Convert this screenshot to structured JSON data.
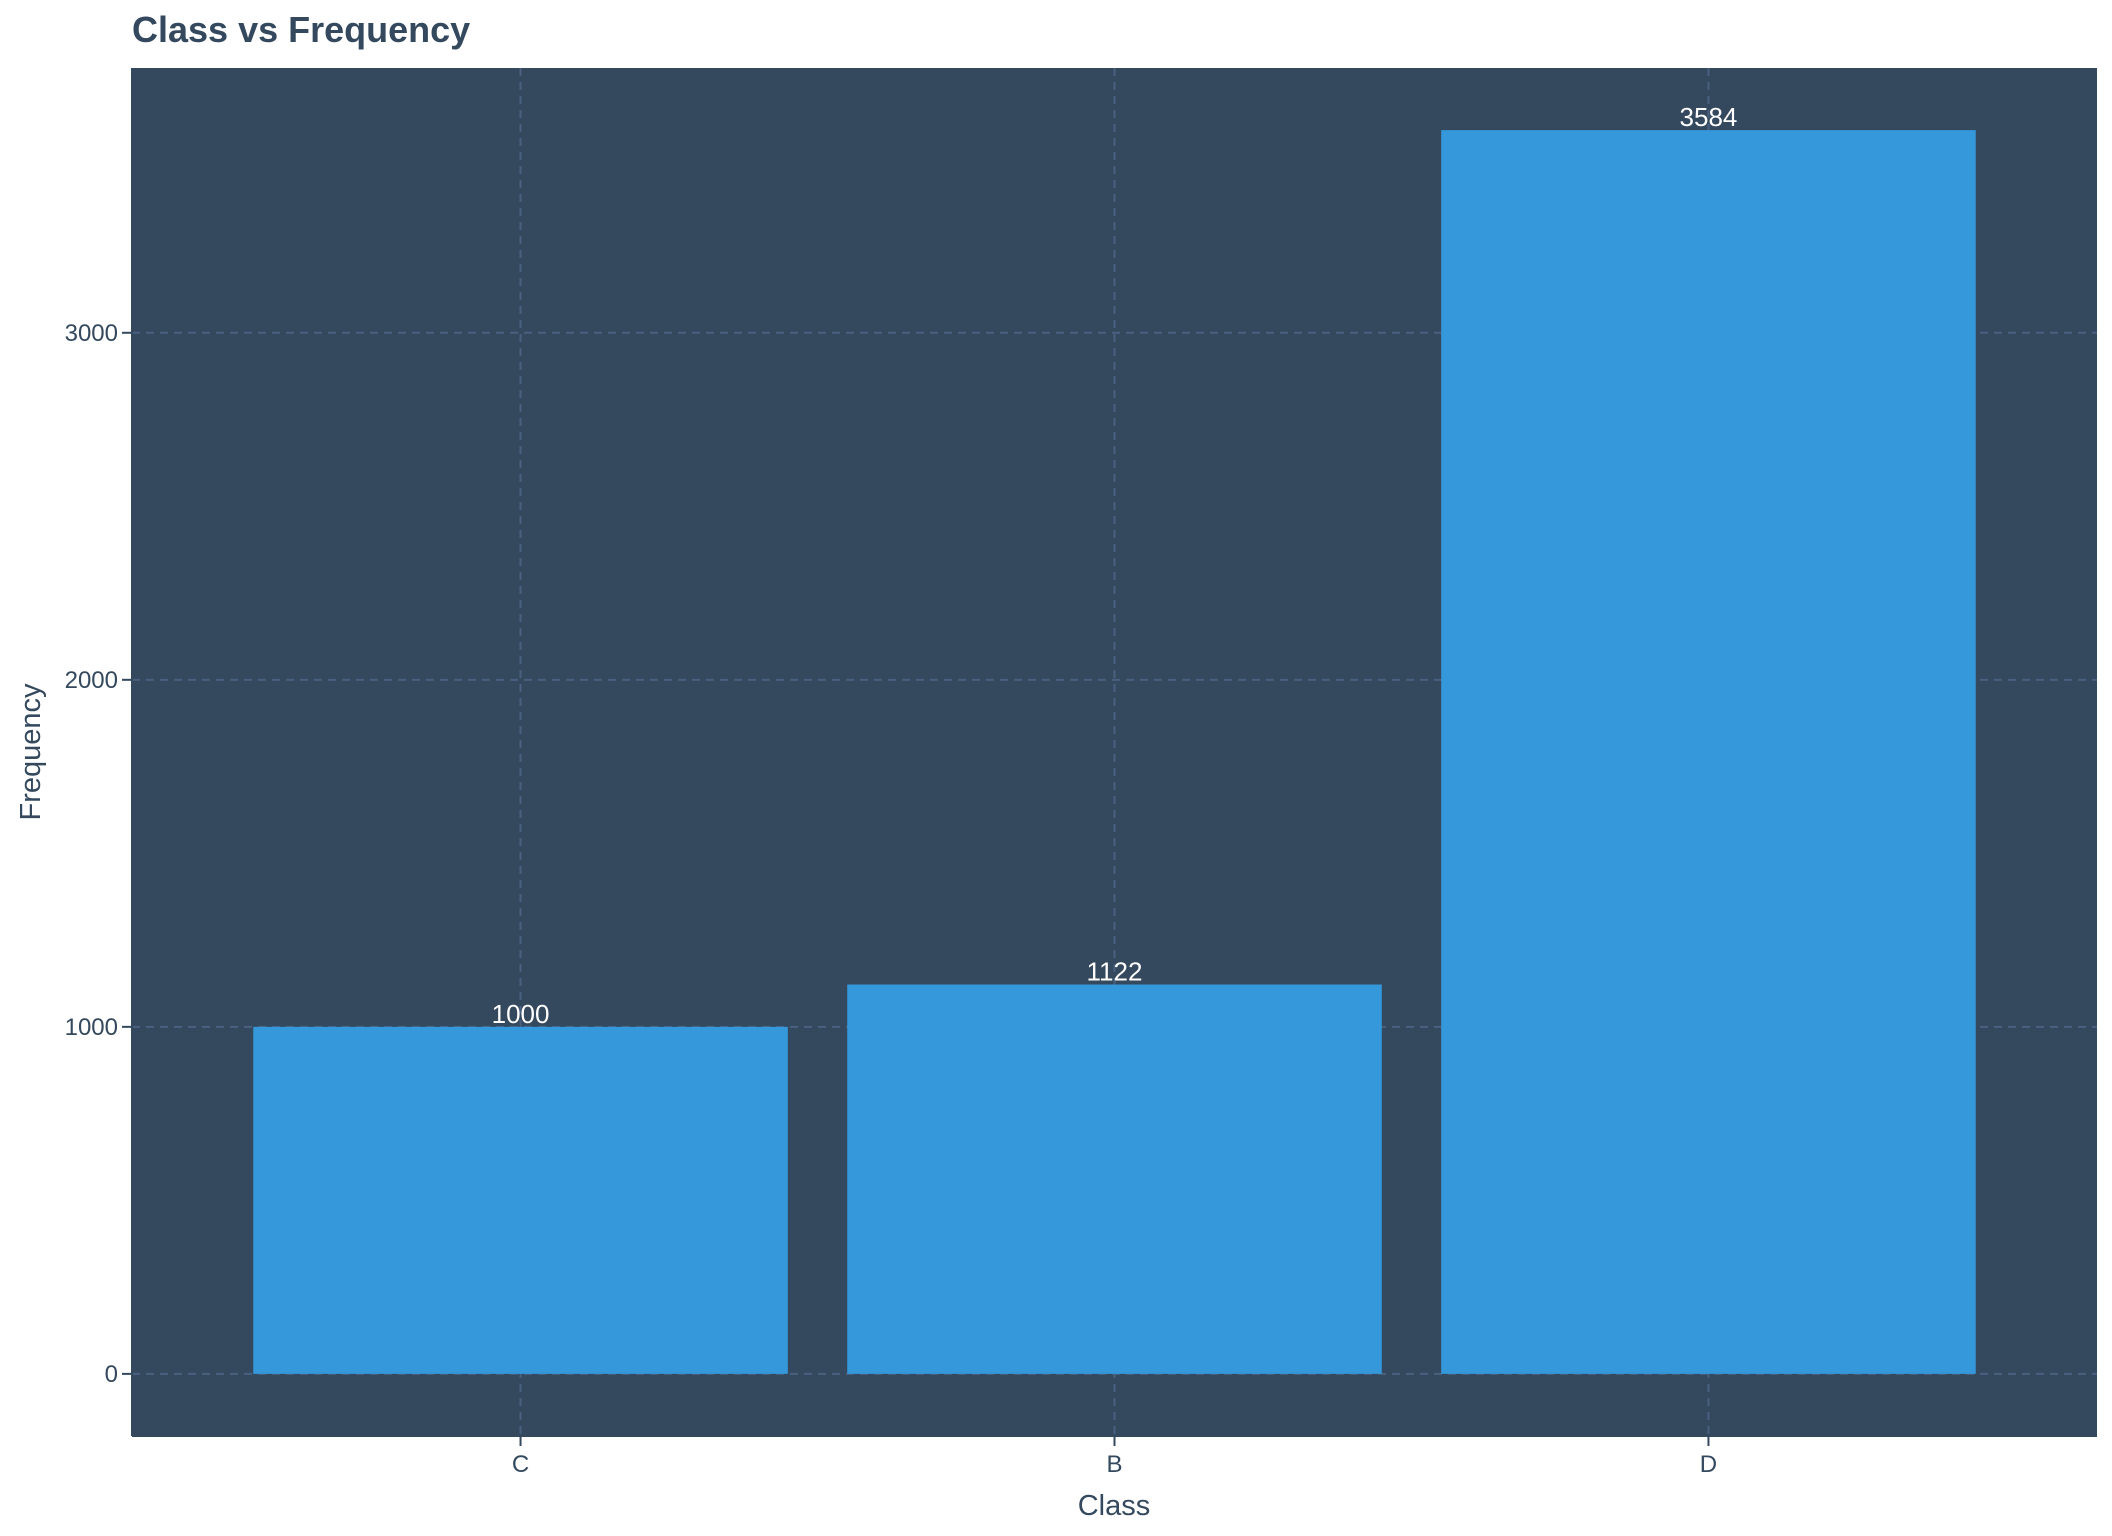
{
  "chart_data": {
    "type": "bar",
    "title": "Class vs Frequency",
    "xlabel": "Class",
    "ylabel": "Frequency",
    "categories": [
      "C",
      "B",
      "D"
    ],
    "values": [
      1000,
      1122,
      3584
    ],
    "data_labels": [
      "1000",
      "1122",
      "3584"
    ],
    "y_ticks": [
      0,
      1000,
      2000,
      3000
    ],
    "y_tick_labels": [
      "0",
      "1000",
      "2000",
      "3000"
    ],
    "ylim": [
      -179,
      3763
    ],
    "grid": true,
    "colors": {
      "panel": "#34495e",
      "bar": "#3498db",
      "grid": "#4a6080",
      "text": "#34495e",
      "data_label": "#ffffff"
    }
  }
}
